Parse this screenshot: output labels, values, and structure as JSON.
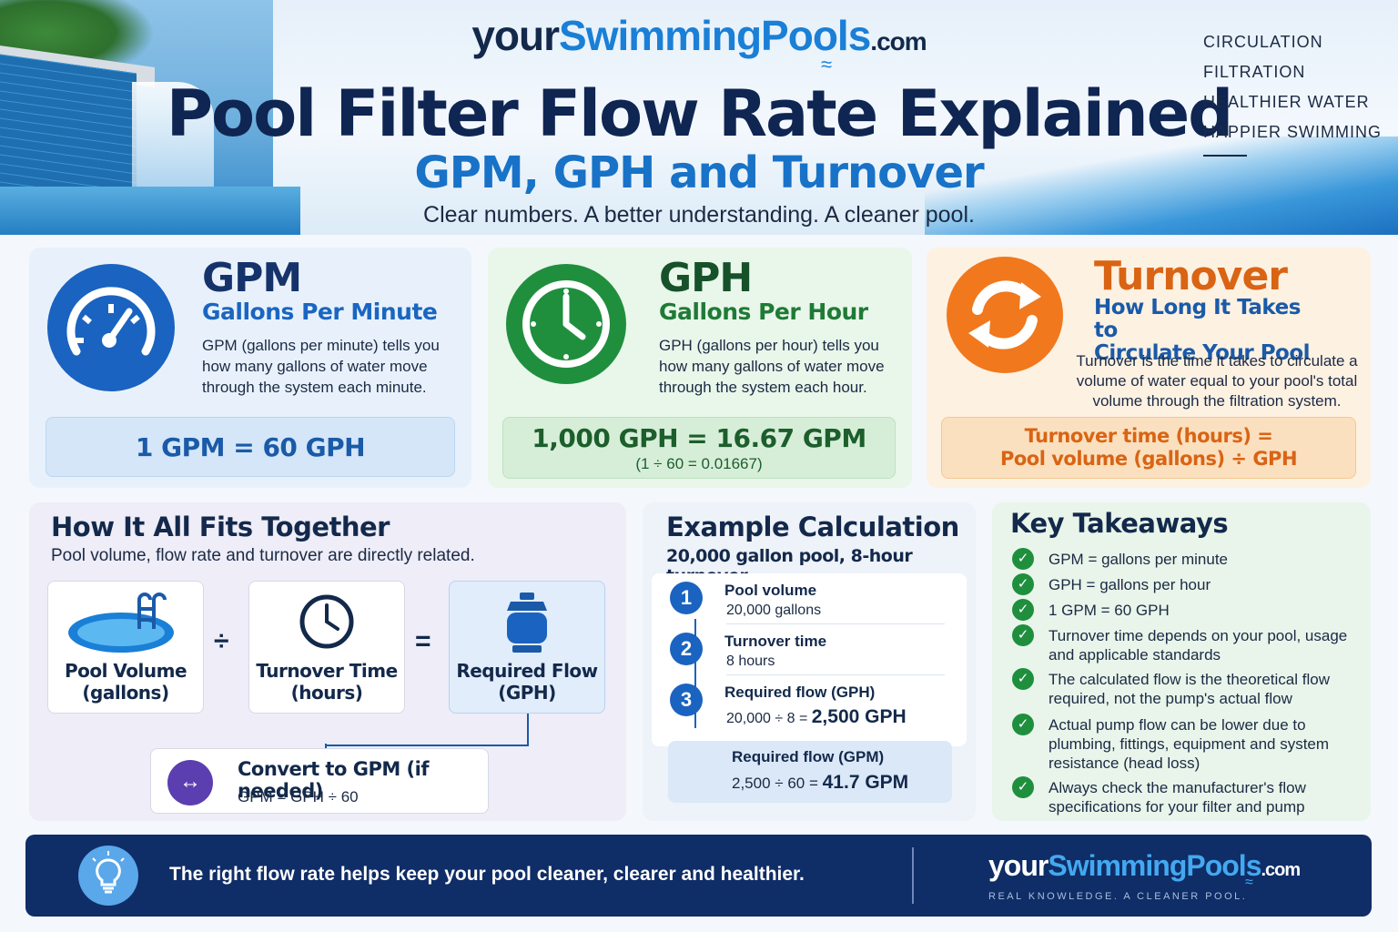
{
  "header": {
    "logo": {
      "your": "your",
      "swimming_pools": "SwimmingPools",
      "com": ".com"
    },
    "title": "Pool Filter Flow Rate Explained",
    "subtitle": "GPM, GPH and Turnover",
    "tagline": "Clear numbers. A better understanding. A cleaner pool.",
    "side_list": [
      "CIRCULATION",
      "FILTRATION",
      "HEALTHIER WATER",
      "HAPPIER SWIMMING"
    ]
  },
  "cards": {
    "gpm": {
      "acronym": "GPM",
      "name": "Gallons Per Minute",
      "desc": "GPM (gallons per minute) tells you how many gallons of water move through the system each minute.",
      "formula": "1 GPM = 60 GPH",
      "icon": "speedometer-icon",
      "color": "#1a63c0"
    },
    "gph": {
      "acronym": "GPH",
      "name": "Gallons Per Hour",
      "desc": "GPH (gallons per hour) tells you how many gallons of water move through the system each hour.",
      "formula": "1,000 GPH = 16.67 GPM",
      "formula_note": "(1 ÷ 60 = 0.01667)",
      "icon": "clock-icon",
      "color": "#1f8f3e"
    },
    "turnover": {
      "title": "Turnover",
      "name_line1": "How Long It Takes to",
      "name_line2": "Circulate Your Pool",
      "desc": "Turnover is the time it takes to circulate a volume of water equal to your pool's total volume through the filtration system.",
      "formula_line1": "Turnover time (hours) =",
      "formula_line2": "Pool volume (gallons) ÷ GPH",
      "icon": "refresh-icon",
      "color": "#f1781c"
    }
  },
  "fit": {
    "title": "How It All Fits Together",
    "subtitle": "Pool volume, flow rate and turnover are directly related.",
    "box1": {
      "line1": "Pool Volume",
      "line2": "(gallons)"
    },
    "op1": "÷",
    "box2": {
      "line1": "Turnover Time",
      "line2": "(hours)"
    },
    "op2": "=",
    "box3": {
      "line1": "Required Flow",
      "line2": "(GPH)"
    },
    "convert": {
      "icon": "↔",
      "title": "Convert to GPM (if needed)",
      "formula": "GPM = GPH ÷ 60"
    }
  },
  "example": {
    "title": "Example Calculation",
    "subtitle": "20,000 gallon pool, 8-hour turnover",
    "steps": [
      {
        "num": "1",
        "label": "Pool volume",
        "value": "20,000 gallons"
      },
      {
        "num": "2",
        "label": "Turnover time",
        "value": "8 hours"
      },
      {
        "num": "3",
        "label": "Required flow (GPH)",
        "calc": "20,000 ÷ 8 =",
        "result": "2,500 GPH"
      }
    ],
    "result": {
      "label": "Required flow (GPM)",
      "calc": "2,500 ÷ 60 =",
      "result": "41.7 GPM"
    }
  },
  "takeaways": {
    "title": "Key Takeaways",
    "items": [
      "GPM = gallons per minute",
      "GPH = gallons per hour",
      "1 GPM = 60 GPH",
      "Turnover time depends on your pool, usage and applicable standards",
      "The calculated flow is the theoretical flow required, not the pump's actual flow",
      "Actual pump flow can be lower due to plumbing, fittings, equipment and system resistance (head loss)",
      "Always check the manufacturer's flow specifications for your filter and pump"
    ]
  },
  "footer": {
    "message": "The right flow rate helps keep your pool cleaner, clearer and healthier.",
    "logo": {
      "your": "your",
      "swimming_pools": "SwimmingPools",
      "com": ".com"
    },
    "tagline": "REAL KNOWLEDGE. A CLEANER POOL.",
    "icon": "lightbulb-icon"
  }
}
